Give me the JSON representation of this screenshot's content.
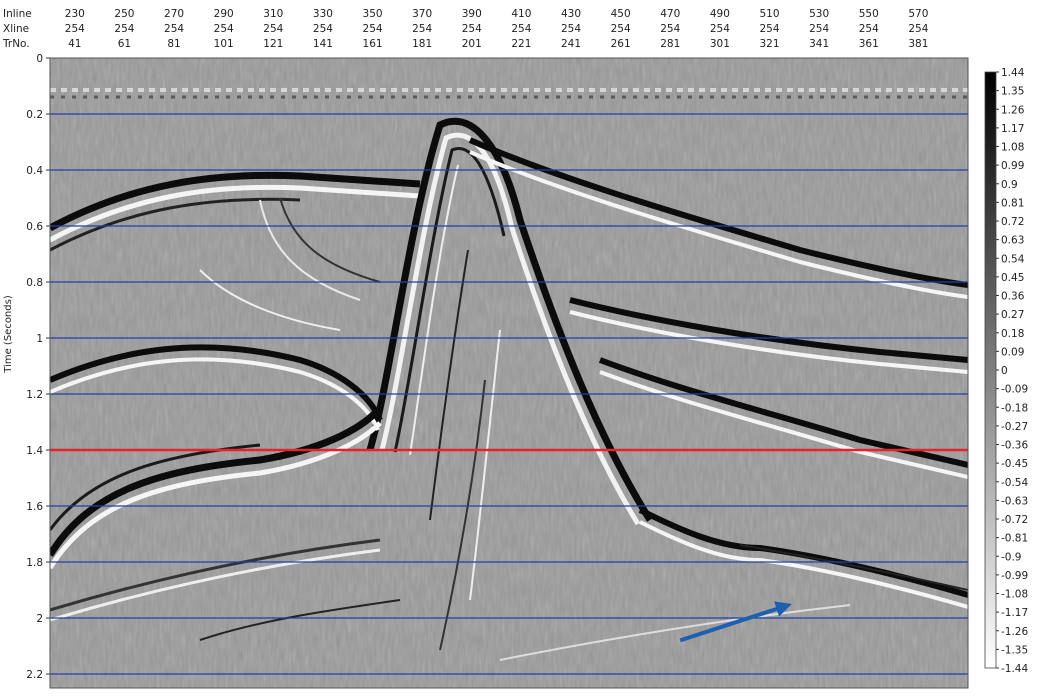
{
  "chart_data": {
    "type": "seismic-section",
    "header_rows": [
      {
        "label": "Inline",
        "values": [
          "230",
          "250",
          "270",
          "290",
          "310",
          "330",
          "350",
          "370",
          "390",
          "410",
          "430",
          "450",
          "470",
          "490",
          "510",
          "530",
          "550",
          "570"
        ]
      },
      {
        "label": "Xline",
        "values": [
          "254",
          "254",
          "254",
          "254",
          "254",
          "254",
          "254",
          "254",
          "254",
          "254",
          "254",
          "254",
          "254",
          "254",
          "254",
          "254",
          "254",
          "254"
        ]
      },
      {
        "label": "TrNo.",
        "values": [
          "41",
          "61",
          "81",
          "101",
          "121",
          "141",
          "161",
          "181",
          "201",
          "221",
          "241",
          "261",
          "281",
          "301",
          "321",
          "341",
          "361",
          "381"
        ]
      }
    ],
    "ylabel": "Time (Seconds)",
    "y_ticks": [
      "0",
      "0.2",
      "0.4",
      "0.6",
      "0.8",
      "1",
      "1.2",
      "1.4",
      "1.6",
      "1.8",
      "2",
      "2.2"
    ],
    "ylim": [
      0,
      2.25
    ],
    "xlim": [
      31,
      401
    ],
    "blue_time_lines": [
      0.2,
      0.4,
      0.6,
      0.8,
      1.0,
      1.2,
      1.6,
      1.8,
      2.0,
      2.2
    ],
    "red_time_line": 1.4,
    "colorbar_ticks": [
      "1.44",
      "1.35",
      "1.26",
      "1.17",
      "1.08",
      "0.99",
      "0.9",
      "0.81",
      "0.72",
      "0.63",
      "0.54",
      "0.45",
      "0.36",
      "0.27",
      "0.18",
      "0.09",
      "0",
      "-0.09",
      "-0.18",
      "-0.27",
      "-0.36",
      "-0.45",
      "-0.54",
      "-0.63",
      "-0.72",
      "-0.81",
      "-0.9",
      "-0.99",
      "-1.08",
      "-1.17",
      "-1.26",
      "-1.35",
      "-1.44"
    ],
    "colorbar_range": [
      -1.44,
      1.44
    ],
    "colors": {
      "blue_line": "#1f3fa8",
      "red_line": "#e8222a",
      "arrow": "#1f5fb0",
      "background": "#9a9a9a"
    },
    "arrow": {
      "from": {
        "trace": 285,
        "time": 2.08
      },
      "to": {
        "trace": 330,
        "time": 1.95
      }
    }
  }
}
